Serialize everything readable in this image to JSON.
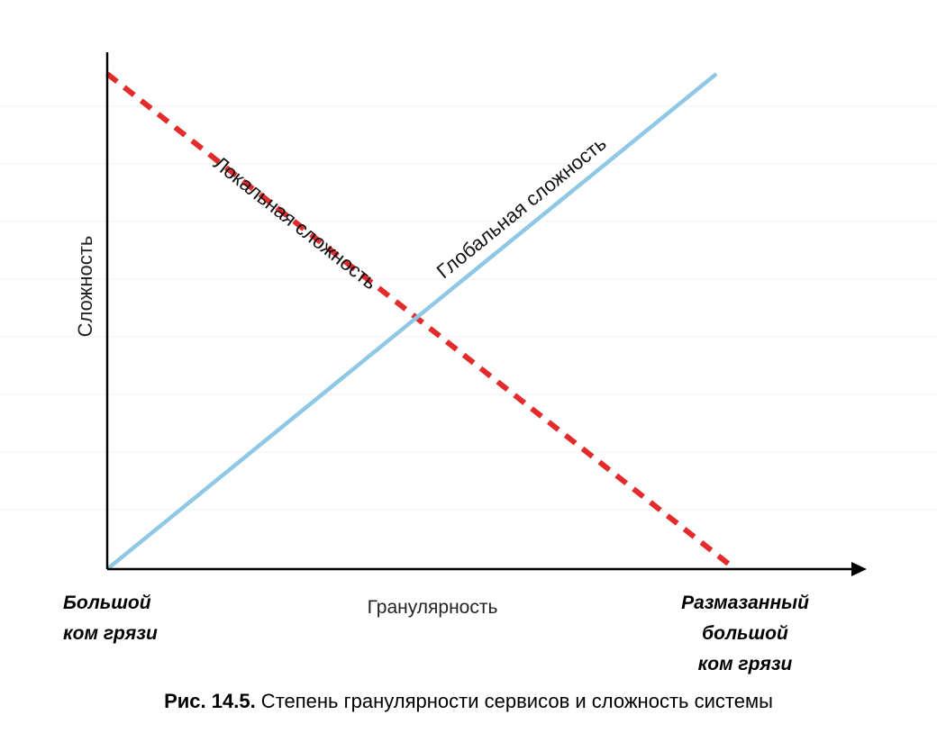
{
  "chart_data": {
    "type": "line",
    "ylabel": "Сложность",
    "xlabel": "Гранулярность",
    "x_start_label": [
      "Большой",
      "ком грязи"
    ],
    "x_end_label": [
      "Размазанный",
      "большой",
      "ком грязи"
    ],
    "xlim": [
      0,
      1
    ],
    "ylim": [
      0,
      1
    ],
    "grid": true,
    "series": [
      {
        "name": "Локальная сложность",
        "style": "dashed",
        "color": "#e32b2b",
        "x": [
          0,
          1
        ],
        "y": [
          1,
          0
        ]
      },
      {
        "name": "Глобальная сложность",
        "style": "solid",
        "color": "#8ec8e6",
        "x": [
          0,
          0.97
        ],
        "y": [
          0,
          1
        ]
      }
    ]
  },
  "caption": {
    "number": "Рис. 14.5.",
    "text": " Степень гранулярности сервисов и сложность системы"
  }
}
